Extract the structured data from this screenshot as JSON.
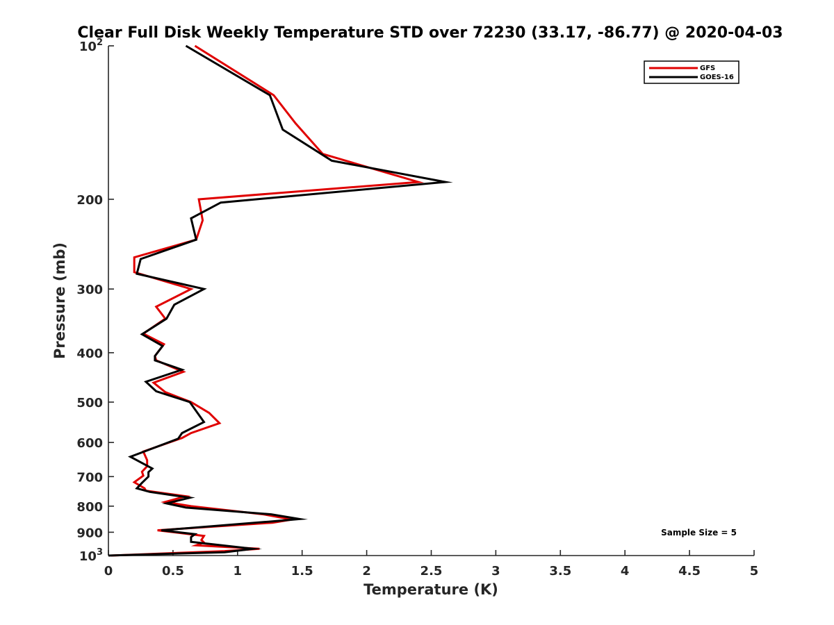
{
  "chart_data": {
    "type": "line",
    "title": "Clear Full Disk Weekly Temperature STD over 72230 (33.17, -86.77) @ 2020-04-03",
    "xlabel": "Temperature (K)",
    "ylabel": "Pressure (mb)",
    "xlim": [
      0,
      5
    ],
    "ylim": [
      100,
      1000
    ],
    "y_scale": "log",
    "y_reversed": true,
    "x_ticks": [
      0,
      0.5,
      1,
      1.5,
      2,
      2.5,
      3,
      3.5,
      4,
      4.5,
      5
    ],
    "x_tick_labels": [
      "0",
      "0.5",
      "1",
      "1.5",
      "2",
      "2.5",
      "3",
      "3.5",
      "4",
      "4.5",
      "5"
    ],
    "y_ticks": [
      100,
      200,
      300,
      400,
      500,
      600,
      700,
      800,
      900,
      1000
    ],
    "y_tick_labels": [
      {
        "base": "10",
        "exp": "2"
      },
      {
        "base": "200"
      },
      {
        "base": "300"
      },
      {
        "base": "400"
      },
      {
        "base": "500"
      },
      {
        "base": "600"
      },
      {
        "base": "700"
      },
      {
        "base": "800"
      },
      {
        "base": "900"
      },
      {
        "base": "10",
        "exp": "3"
      }
    ],
    "grid": false,
    "legend_position": "top-right",
    "annotation": "Sample Size = 5",
    "series": [
      {
        "name": "GFS",
        "color": "#e00000",
        "points": [
          [
            0.67,
            100
          ],
          [
            1.28,
            125
          ],
          [
            1.45,
            142
          ],
          [
            1.66,
            163
          ],
          [
            2.4,
            185
          ],
          [
            0.7,
            200
          ],
          [
            0.73,
            220
          ],
          [
            0.68,
            240
          ],
          [
            0.2,
            260
          ],
          [
            0.2,
            278
          ],
          [
            0.64,
            300
          ],
          [
            0.37,
            325
          ],
          [
            0.44,
            343
          ],
          [
            0.27,
            367
          ],
          [
            0.43,
            385
          ],
          [
            0.36,
            406
          ],
          [
            0.37,
            414
          ],
          [
            0.58,
            436
          ],
          [
            0.35,
            458
          ],
          [
            0.44,
            478
          ],
          [
            0.64,
            500
          ],
          [
            0.78,
            525
          ],
          [
            0.86,
            550
          ],
          [
            0.64,
            575
          ],
          [
            0.57,
            588
          ],
          [
            0.27,
            625
          ],
          [
            0.3,
            650
          ],
          [
            0.3,
            668
          ],
          [
            0.26,
            685
          ],
          [
            0.27,
            697
          ],
          [
            0.2,
            718
          ],
          [
            0.28,
            738
          ],
          [
            0.29,
            746
          ],
          [
            0.6,
            765
          ],
          [
            0.44,
            785
          ],
          [
            0.64,
            800
          ],
          [
            1.2,
            830
          ],
          [
            1.42,
            850
          ],
          [
            1.27,
            862
          ],
          [
            0.38,
            892
          ],
          [
            0.74,
            915
          ],
          [
            0.72,
            932
          ],
          [
            0.74,
            943
          ],
          [
            0.68,
            955
          ],
          [
            1.17,
            970
          ],
          [
            0.9,
            980
          ],
          [
            0.02,
            1000
          ]
        ]
      },
      {
        "name": "GOES-16",
        "color": "#000000",
        "points": [
          [
            0.6,
            100
          ],
          [
            1.25,
            125
          ],
          [
            1.35,
            146
          ],
          [
            1.73,
            168
          ],
          [
            2.61,
            185
          ],
          [
            0.87,
            203
          ],
          [
            0.64,
            218
          ],
          [
            0.68,
            240
          ],
          [
            0.25,
            262
          ],
          [
            0.22,
            280
          ],
          [
            0.74,
            300
          ],
          [
            0.51,
            322
          ],
          [
            0.45,
            343
          ],
          [
            0.26,
            368
          ],
          [
            0.42,
            388
          ],
          [
            0.36,
            406
          ],
          [
            0.36,
            414
          ],
          [
            0.57,
            432
          ],
          [
            0.29,
            456
          ],
          [
            0.37,
            476
          ],
          [
            0.63,
            500
          ],
          [
            0.74,
            547
          ],
          [
            0.57,
            575
          ],
          [
            0.54,
            590
          ],
          [
            0.17,
            640
          ],
          [
            0.34,
            675
          ],
          [
            0.31,
            686
          ],
          [
            0.31,
            700
          ],
          [
            0.26,
            720
          ],
          [
            0.22,
            738
          ],
          [
            0.32,
            750
          ],
          [
            0.63,
            770
          ],
          [
            0.45,
            790
          ],
          [
            0.6,
            805
          ],
          [
            1.26,
            830
          ],
          [
            1.48,
            848
          ],
          [
            1.24,
            858
          ],
          [
            0.41,
            892
          ],
          [
            0.67,
            908
          ],
          [
            0.64,
            920
          ],
          [
            0.64,
            940
          ],
          [
            1.12,
            970
          ],
          [
            0.9,
            985
          ],
          [
            0,
            1000
          ]
        ]
      }
    ]
  }
}
